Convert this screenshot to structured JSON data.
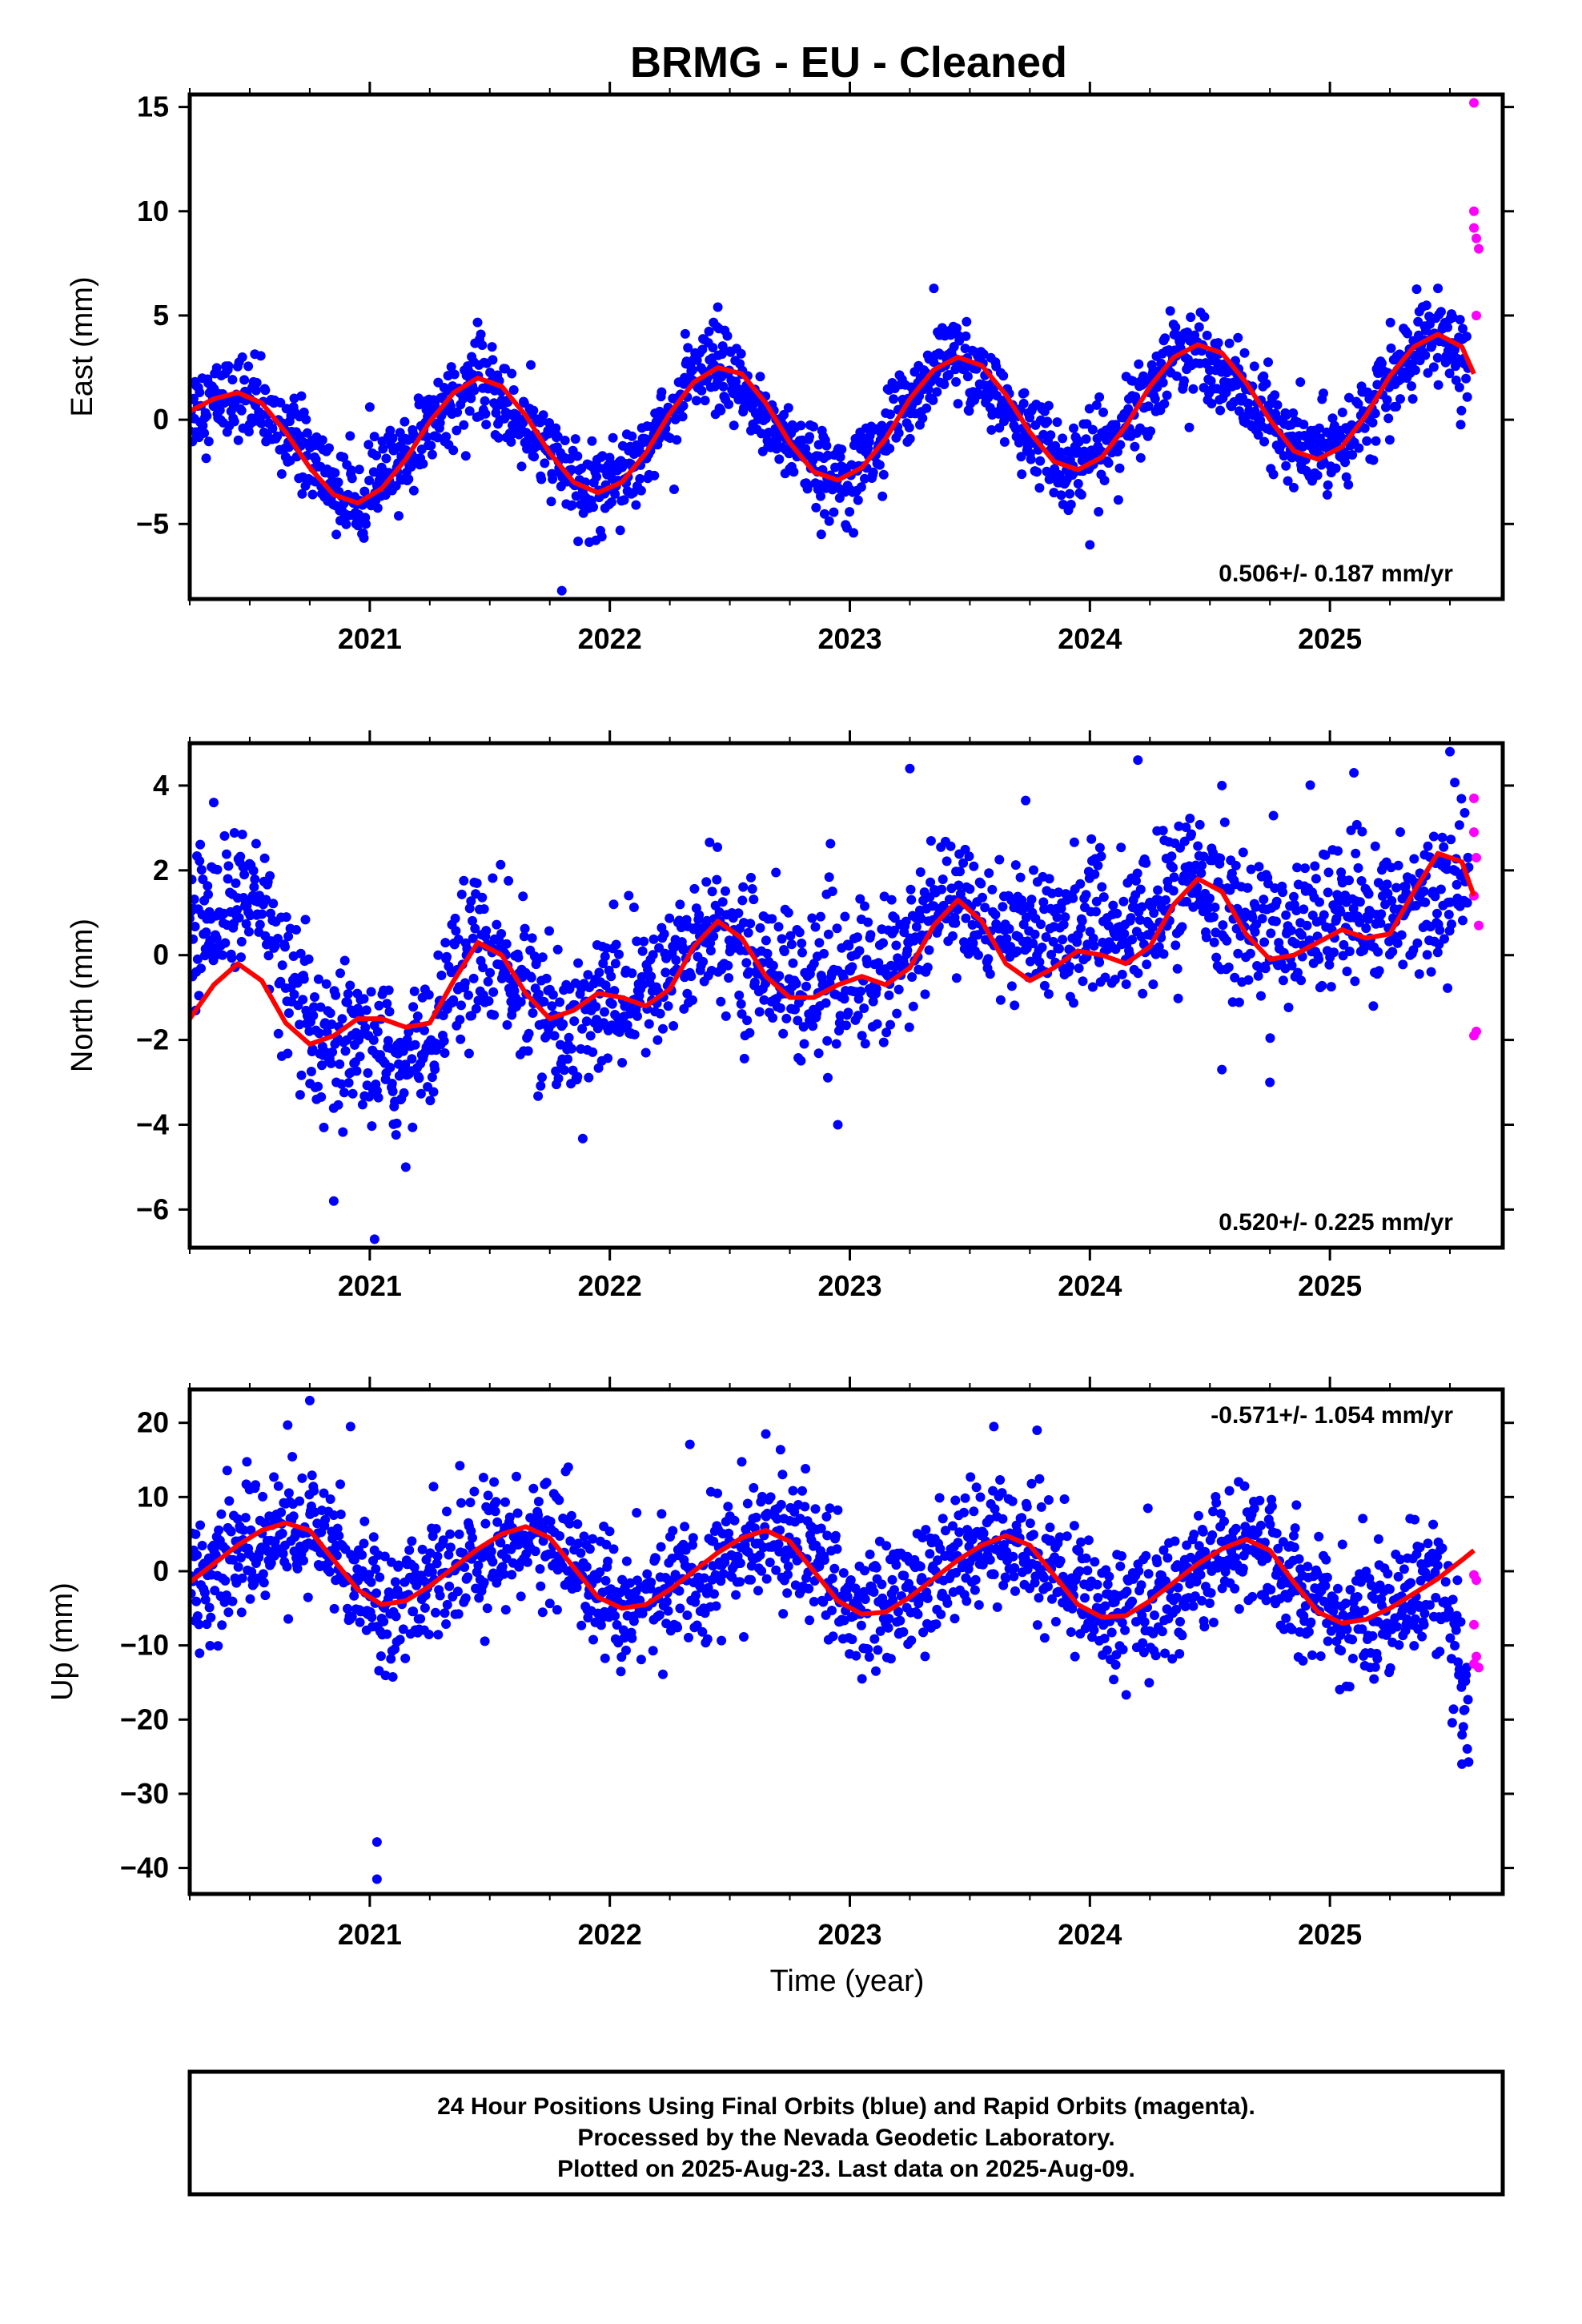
{
  "title": "BRMG  - EU - Cleaned",
  "xlabel": "Time (year)",
  "footer": {
    "line1": "24 Hour Positions Using Final Orbits (blue) and Rapid Orbits (magenta).",
    "line2": "Processed by the Nevada Geodetic Laboratory.",
    "line3": "Plotted on 2025-Aug-23. Last data on 2025-Aug-09."
  },
  "colors": {
    "final_orbits": "#0000ff",
    "rapid_orbits": "#ff00ff",
    "model_fit": "#ff0000",
    "frame": "#000000"
  },
  "chart_data": [
    {
      "type": "scatter",
      "component": "east",
      "ylabel": "East (mm)",
      "rate": "0.506+/- 0.187 mm/yr",
      "rate_placement": "bottom-right",
      "xlim": [
        2020.25,
        2025.72
      ],
      "ylim": [
        -8.6,
        15.6
      ],
      "y_ticks": [
        -5,
        0,
        5,
        10,
        15
      ],
      "x_ticks": [
        2021,
        2022,
        2023,
        2024,
        2025
      ],
      "series": [
        {
          "name": "Final Orbits (blue)",
          "kind": "daily scatter",
          "x_range": [
            2020.25,
            2025.58
          ],
          "envelope_points": [
            [
              2020.25,
              0.5
            ],
            [
              2020.45,
              1.3
            ],
            [
              2020.7,
              -1.0
            ],
            [
              2020.9,
              -3.9
            ],
            [
              2021.1,
              -2.5
            ],
            [
              2021.35,
              1.2
            ],
            [
              2021.45,
              2.0
            ],
            [
              2021.7,
              -1.0
            ],
            [
              2021.9,
              -3.6
            ],
            [
              2022.1,
              -2.0
            ],
            [
              2022.35,
              2.0
            ],
            [
              2022.45,
              2.4
            ],
            [
              2022.7,
              -0.5
            ],
            [
              2022.9,
              -2.8
            ],
            [
              2023.1,
              -1.5
            ],
            [
              2023.35,
              2.5
            ],
            [
              2023.45,
              3.0
            ],
            [
              2023.7,
              0.0
            ],
            [
              2023.9,
              -2.3
            ],
            [
              2024.1,
              -1.0
            ],
            [
              2024.35,
              3.0
            ],
            [
              2024.45,
              3.6
            ],
            [
              2024.7,
              0.5
            ],
            [
              2024.9,
              -1.8
            ],
            [
              2025.1,
              -0.5
            ],
            [
              2025.35,
              3.2
            ],
            [
              2025.45,
              4.0
            ],
            [
              2025.58,
              2.5
            ]
          ],
          "scatter_sd": 1.0,
          "outliers": [
            [
              2021.8,
              -8.2
            ],
            [
              2022.45,
              5.4
            ],
            [
              2023.35,
              6.3
            ],
            [
              2024.0,
              -6.0
            ],
            [
              2025.45,
              6.3
            ]
          ]
        },
        {
          "name": "Rapid Orbits (magenta)",
          "points": [
            [
              2025.6,
              15.2
            ],
            [
              2025.6,
              10.0
            ],
            [
              2025.6,
              9.2
            ],
            [
              2025.61,
              8.7
            ],
            [
              2025.62,
              8.2
            ],
            [
              2025.61,
              5.0
            ]
          ]
        },
        {
          "name": "Model fit (red)",
          "kind": "line",
          "x": [
            2020.25,
            2020.35,
            2020.45,
            2020.55,
            2020.65,
            2020.75,
            2020.85,
            2020.95,
            2021.05,
            2021.15,
            2021.25,
            2021.35,
            2021.45,
            2021.55,
            2021.65,
            2021.75,
            2021.85,
            2021.95,
            2022.05,
            2022.15,
            2022.25,
            2022.35,
            2022.45,
            2022.55,
            2022.65,
            2022.75,
            2022.85,
            2022.95,
            2023.05,
            2023.15,
            2023.25,
            2023.35,
            2023.45,
            2023.55,
            2023.65,
            2023.75,
            2023.85,
            2023.95,
            2024.05,
            2024.15,
            2024.25,
            2024.35,
            2024.45,
            2024.55,
            2024.65,
            2024.75,
            2024.85,
            2024.95,
            2025.05,
            2025.15,
            2025.25,
            2025.35,
            2025.45,
            2025.55,
            2025.6
          ],
          "y": [
            0.4,
            1.0,
            1.3,
            0.8,
            -0.6,
            -2.3,
            -3.6,
            -4.0,
            -3.3,
            -1.9,
            -0.1,
            1.3,
            2.0,
            1.6,
            0.2,
            -1.6,
            -3.0,
            -3.5,
            -3.0,
            -1.6,
            0.3,
            1.8,
            2.5,
            2.2,
            0.8,
            -1.1,
            -2.5,
            -2.9,
            -2.3,
            -0.9,
            1.0,
            2.4,
            3.0,
            2.6,
            1.2,
            -0.6,
            -2.0,
            -2.4,
            -1.8,
            -0.3,
            1.6,
            3.0,
            3.6,
            3.2,
            1.8,
            0.0,
            -1.5,
            -1.9,
            -1.3,
            0.2,
            2.1,
            3.5,
            4.1,
            3.5,
            2.2
          ]
        }
      ]
    },
    {
      "type": "scatter",
      "component": "north",
      "ylabel": "North (mm)",
      "rate": "0.520+/- 0.225 mm/yr",
      "rate_placement": "bottom-right",
      "xlim": [
        2020.25,
        2025.72
      ],
      "ylim": [
        -6.9,
        5.0
      ],
      "y_ticks": [
        -6,
        -4,
        -2,
        0,
        2,
        4
      ],
      "x_ticks": [
        2021,
        2022,
        2023,
        2024,
        2025
      ],
      "series": [
        {
          "name": "Final Orbits (blue)",
          "kind": "daily scatter",
          "x_range": [
            2020.25,
            2025.58
          ],
          "envelope_points": [
            [
              2020.25,
              0.5
            ],
            [
              2020.4,
              1.3
            ],
            [
              2020.55,
              1.2
            ],
            [
              2020.65,
              -0.5
            ],
            [
              2020.8,
              -2.5
            ],
            [
              2021.0,
              -2.2
            ],
            [
              2021.15,
              -2.8
            ],
            [
              2021.3,
              -1.2
            ],
            [
              2021.45,
              0.3
            ],
            [
              2021.6,
              -0.5
            ],
            [
              2021.8,
              -1.8
            ],
            [
              2022.0,
              -1.0
            ],
            [
              2022.2,
              -0.8
            ],
            [
              2022.4,
              0.6
            ],
            [
              2022.6,
              0.0
            ],
            [
              2022.8,
              -0.8
            ],
            [
              2023.0,
              -0.5
            ],
            [
              2023.2,
              -0.2
            ],
            [
              2023.4,
              1.2
            ],
            [
              2023.6,
              0.8
            ],
            [
              2023.8,
              0.5
            ],
            [
              2024.0,
              0.7
            ],
            [
              2024.2,
              0.5
            ],
            [
              2024.4,
              1.8
            ],
            [
              2024.6,
              1.0
            ],
            [
              2024.8,
              0.5
            ],
            [
              2025.0,
              1.0
            ],
            [
              2025.2,
              0.8
            ],
            [
              2025.4,
              1.5
            ],
            [
              2025.58,
              1.8
            ]
          ],
          "scatter_sd": 0.85,
          "outliers": [
            [
              2020.35,
              3.6
            ],
            [
              2020.85,
              -5.8
            ],
            [
              2021.02,
              -6.7
            ],
            [
              2021.15,
              -5.0
            ],
            [
              2022.95,
              -4.0
            ],
            [
              2023.25,
              4.4
            ],
            [
              2024.2,
              4.6
            ],
            [
              2024.55,
              4.0
            ],
            [
              2024.55,
              -2.7
            ],
            [
              2024.75,
              -3.0
            ],
            [
              2025.1,
              4.3
            ],
            [
              2025.5,
              4.8
            ]
          ]
        },
        {
          "name": "Rapid Orbits (magenta)",
          "points": [
            [
              2025.6,
              3.7
            ],
            [
              2025.6,
              2.9
            ],
            [
              2025.61,
              2.3
            ],
            [
              2025.6,
              1.4
            ],
            [
              2025.62,
              0.7
            ],
            [
              2025.61,
              -1.8
            ],
            [
              2025.6,
              -1.9
            ]
          ]
        },
        {
          "name": "Model fit (red)",
          "kind": "line",
          "x": [
            2020.25,
            2020.35,
            2020.45,
            2020.55,
            2020.65,
            2020.75,
            2020.85,
            2020.95,
            2021.05,
            2021.15,
            2021.25,
            2021.35,
            2021.45,
            2021.55,
            2021.65,
            2021.75,
            2021.85,
            2021.95,
            2022.05,
            2022.15,
            2022.25,
            2022.35,
            2022.45,
            2022.55,
            2022.65,
            2022.75,
            2022.85,
            2022.95,
            2023.05,
            2023.15,
            2023.25,
            2023.35,
            2023.45,
            2023.55,
            2023.65,
            2023.75,
            2023.85,
            2023.95,
            2024.05,
            2024.15,
            2024.25,
            2024.35,
            2024.45,
            2024.55,
            2024.65,
            2024.75,
            2024.85,
            2024.95,
            2025.05,
            2025.15,
            2025.25,
            2025.35,
            2025.45,
            2025.55,
            2025.6
          ],
          "y": [
            -1.5,
            -0.7,
            -0.2,
            -0.6,
            -1.6,
            -2.1,
            -1.9,
            -1.5,
            -1.5,
            -1.7,
            -1.6,
            -0.6,
            0.3,
            0.0,
            -0.9,
            -1.5,
            -1.3,
            -0.9,
            -1.0,
            -1.2,
            -0.8,
            0.2,
            0.8,
            0.4,
            -0.5,
            -1.0,
            -1.0,
            -0.7,
            -0.5,
            -0.7,
            -0.3,
            0.7,
            1.3,
            0.8,
            -0.2,
            -0.6,
            -0.3,
            0.1,
            0.0,
            -0.2,
            0.2,
            1.2,
            1.8,
            1.5,
            0.5,
            -0.1,
            0.0,
            0.3,
            0.6,
            0.4,
            0.5,
            1.5,
            2.4,
            2.2,
            1.4
          ]
        }
      ]
    },
    {
      "type": "scatter",
      "component": "up",
      "ylabel": "Up (mm)",
      "rate": "-0.571+/- 1.054 mm/yr",
      "rate_placement": "top-right",
      "xlim": [
        2020.25,
        2025.72
      ],
      "ylim": [
        -43.5,
        24.5
      ],
      "y_ticks": [
        -40,
        -30,
        -20,
        -10,
        0,
        10,
        20
      ],
      "x_ticks": [
        2021,
        2022,
        2023,
        2024,
        2025
      ],
      "series": [
        {
          "name": "Final Orbits (blue)",
          "kind": "daily scatter",
          "x_range": [
            2020.25,
            2025.58
          ],
          "envelope_points": [
            [
              2020.25,
              -2.0
            ],
            [
              2020.45,
              3.0
            ],
            [
              2020.7,
              6.0
            ],
            [
              2020.85,
              3.0
            ],
            [
              2021.05,
              -4.0
            ],
            [
              2021.3,
              -1.0
            ],
            [
              2021.5,
              3.0
            ],
            [
              2021.7,
              5.5
            ],
            [
              2021.9,
              0.0
            ],
            [
              2022.05,
              -5.0
            ],
            [
              2022.3,
              -2.0
            ],
            [
              2022.5,
              2.0
            ],
            [
              2022.7,
              5.5
            ],
            [
              2022.85,
              1.0
            ],
            [
              2023.05,
              -5.5
            ],
            [
              2023.3,
              -2.0
            ],
            [
              2023.5,
              2.0
            ],
            [
              2023.7,
              5.0
            ],
            [
              2023.85,
              1.0
            ],
            [
              2024.05,
              -6.0
            ],
            [
              2024.3,
              -3.5
            ],
            [
              2024.5,
              1.0
            ],
            [
              2024.7,
              4.0
            ],
            [
              2024.85,
              -1.0
            ],
            [
              2025.05,
              -7.0
            ],
            [
              2025.3,
              -4.0
            ],
            [
              2025.45,
              -1.0
            ],
            [
              2025.52,
              -12.0
            ],
            [
              2025.58,
              -20.0
            ]
          ],
          "scatter_sd": 4.3,
          "outliers": [
            [
              2020.75,
              23.0
            ],
            [
              2020.92,
              19.5
            ],
            [
              2021.03,
              -36.5
            ],
            [
              2021.03,
              -41.5
            ],
            [
              2022.65,
              18.5
            ],
            [
              2023.6,
              19.5
            ],
            [
              2023.78,
              19.0
            ],
            [
              2025.55,
              -26.0
            ]
          ]
        },
        {
          "name": "Rapid Orbits (magenta)",
          "points": [
            [
              2025.6,
              -0.5
            ],
            [
              2025.61,
              -1.2
            ],
            [
              2025.6,
              -7.2
            ],
            [
              2025.61,
              -11.5
            ],
            [
              2025.6,
              -12.5
            ],
            [
              2025.62,
              -13.0
            ]
          ]
        },
        {
          "name": "Model fit (red)",
          "kind": "line",
          "x": [
            2020.25,
            2020.35,
            2020.45,
            2020.55,
            2020.65,
            2020.75,
            2020.85,
            2020.95,
            2021.05,
            2021.15,
            2021.25,
            2021.35,
            2021.45,
            2021.55,
            2021.65,
            2021.75,
            2021.85,
            2021.95,
            2022.05,
            2022.15,
            2022.25,
            2022.35,
            2022.45,
            2022.55,
            2022.65,
            2022.75,
            2022.85,
            2022.95,
            2023.05,
            2023.15,
            2023.25,
            2023.35,
            2023.45,
            2023.55,
            2023.65,
            2023.75,
            2023.85,
            2023.95,
            2024.05,
            2024.15,
            2024.25,
            2024.35,
            2024.45,
            2024.55,
            2024.65,
            2024.75,
            2024.85,
            2024.95,
            2025.05,
            2025.15,
            2025.25,
            2025.35,
            2025.45,
            2025.55,
            2025.6
          ],
          "y": [
            -1.5,
            1.0,
            3.5,
            5.5,
            6.5,
            5.5,
            1.5,
            -2.5,
            -4.5,
            -4.0,
            -2.0,
            0.5,
            3.0,
            5.0,
            6.0,
            4.5,
            0.5,
            -3.5,
            -5.0,
            -4.5,
            -2.5,
            0.0,
            2.5,
            4.5,
            5.5,
            4.0,
            0.0,
            -4.0,
            -5.8,
            -5.5,
            -3.5,
            -1.0,
            1.5,
            3.5,
            4.8,
            3.5,
            -0.5,
            -4.5,
            -6.2,
            -6.0,
            -4.0,
            -1.5,
            1.0,
            3.0,
            4.3,
            2.8,
            -1.5,
            -5.5,
            -7.0,
            -6.5,
            -5.0,
            -3.0,
            -1.0,
            1.5,
            2.8
          ]
        }
      ]
    }
  ]
}
